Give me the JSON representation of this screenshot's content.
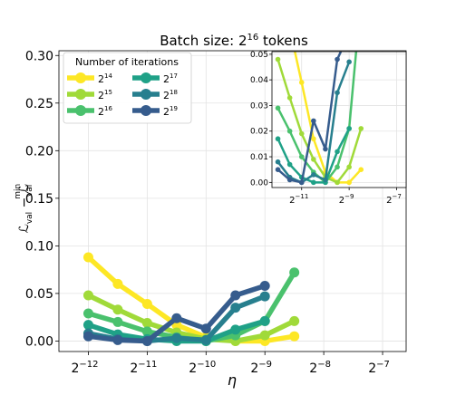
{
  "chart_data": {
    "type": "line",
    "title_prefix": "Batch size: 2",
    "title_exp": "16",
    "title_suffix": " tokens",
    "xlabel": "η",
    "ylabel": {
      "base": "ℒ",
      "sub": "val",
      "sup_min": "min"
    },
    "x_scale": "log2",
    "xlim_exp": [
      -12.5,
      -6.6
    ],
    "ylim": [
      -0.011,
      0.305
    ],
    "x_ticks": [
      {
        "exp": -12,
        "label_base": "2",
        "label_exp": "−12"
      },
      {
        "exp": -11,
        "label_base": "2",
        "label_exp": "−11"
      },
      {
        "exp": -10,
        "label_base": "2",
        "label_exp": "−10"
      },
      {
        "exp": -9,
        "label_base": "2",
        "label_exp": "−9"
      },
      {
        "exp": -8,
        "label_base": "2",
        "label_exp": "−8"
      },
      {
        "exp": -7,
        "label_base": "2",
        "label_exp": "−7"
      }
    ],
    "y_ticks": [
      {
        "value": 0.0,
        "label": "0.00"
      },
      {
        "value": 0.05,
        "label": "0.05"
      },
      {
        "value": 0.1,
        "label": "0.10"
      },
      {
        "value": 0.15,
        "label": "0.15"
      },
      {
        "value": 0.2,
        "label": "0.20"
      },
      {
        "value": 0.25,
        "label": "0.25"
      },
      {
        "value": 0.3,
        "label": "0.30"
      }
    ],
    "grid": true,
    "legend": {
      "title": "Number of iterations",
      "placement": "top-left",
      "columns": 2
    },
    "series": [
      {
        "name_base": "2",
        "name_exp": "14",
        "color": "#fde725",
        "x_exp": [
          -12.0,
          -11.5,
          -11.0,
          -10.5,
          -10.0,
          -9.5,
          -9.0,
          -8.5
        ],
        "values": [
          0.088,
          0.06,
          0.039,
          0.017,
          0.004,
          0.0,
          0.0,
          0.005
        ]
      },
      {
        "name_base": "2",
        "name_exp": "15",
        "color": "#a0da39",
        "x_exp": [
          -12.0,
          -11.5,
          -11.0,
          -10.5,
          -10.0,
          -9.5,
          -9.0,
          -8.5
        ],
        "values": [
          0.048,
          0.033,
          0.019,
          0.009,
          0.002,
          0.0,
          0.006,
          0.021
        ]
      },
      {
        "name_base": "2",
        "name_exp": "16",
        "color": "#4ac16d",
        "x_exp": [
          -12.0,
          -11.5,
          -11.0,
          -10.5,
          -10.0,
          -9.5,
          -9.0,
          -8.5
        ],
        "values": [
          0.029,
          0.02,
          0.01,
          0.004,
          0.0,
          0.006,
          0.021,
          0.072
        ]
      },
      {
        "name_base": "2",
        "name_exp": "17",
        "color": "#1fa187",
        "x_exp": [
          -12.0,
          -11.5,
          -11.0,
          -10.5,
          -10.0,
          -9.5,
          -9.0
        ],
        "values": [
          0.017,
          0.007,
          0.002,
          0.0,
          0.0,
          0.012,
          0.021
        ]
      },
      {
        "name_base": "2",
        "name_exp": "18",
        "color": "#277f8e",
        "x_exp": [
          -12.0,
          -11.5,
          -11.0,
          -10.5,
          -10.0,
          -9.5,
          -9.0
        ],
        "values": [
          0.008,
          0.002,
          0.0,
          0.003,
          0.001,
          0.035,
          0.047
        ]
      },
      {
        "name_base": "2",
        "name_exp": "19",
        "color": "#365c8d",
        "x_exp": [
          -12.0,
          -11.5,
          -11.0,
          -10.5,
          -10.0,
          -9.5,
          -9.0
        ],
        "values": [
          0.005,
          0.001,
          0.0,
          0.024,
          0.013,
          0.048,
          0.058
        ]
      }
    ],
    "inset": {
      "xlim_exp": [
        -12.25,
        -6.6
      ],
      "ylim": [
        -0.002,
        0.051
      ],
      "y_ticks": [
        {
          "value": 0.0,
          "label": "0.00"
        },
        {
          "value": 0.01,
          "label": "0.01"
        },
        {
          "value": 0.02,
          "label": "0.02"
        },
        {
          "value": 0.03,
          "label": "0.03"
        },
        {
          "value": 0.04,
          "label": "0.04"
        },
        {
          "value": 0.05,
          "label": "0.05"
        }
      ],
      "x_ticks": [
        {
          "exp": -11,
          "label_base": "2",
          "label_exp": "−11"
        },
        {
          "exp": -9,
          "label_base": "2",
          "label_exp": "−9"
        },
        {
          "exp": -7,
          "label_base": "2",
          "label_exp": "−7"
        }
      ]
    }
  }
}
